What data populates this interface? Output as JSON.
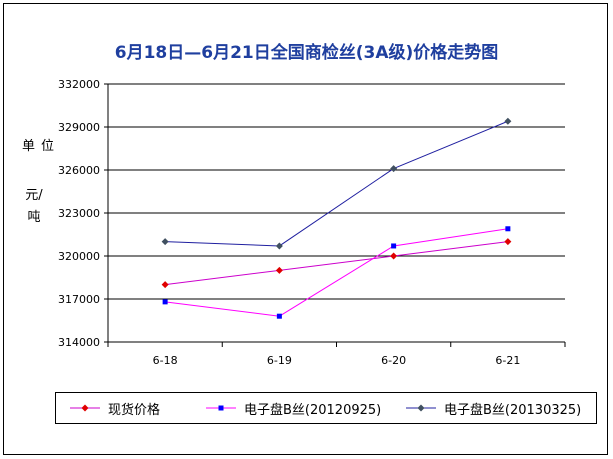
{
  "title": "6月18日—6月21日全国商检丝(3A级)价格走势图",
  "ylabel_lines": [
    "单位",
    "元/吨"
  ],
  "chart_data": {
    "type": "line",
    "categories": [
      "6-18",
      "6-19",
      "6-20",
      "6-21"
    ],
    "ylim": [
      314000,
      332000
    ],
    "yticks": [
      314000,
      317000,
      320000,
      323000,
      326000,
      329000,
      332000
    ],
    "ytick_labels": [
      "314000",
      "317000",
      "320000",
      "323000",
      "326000",
      "329000",
      "332000"
    ],
    "grid": true,
    "legend_position": "bottom",
    "series": [
      {
        "name": "现货价格",
        "color": "#cc00cc",
        "marker": "diamond",
        "marker_color": "#e00000",
        "values": [
          318000,
          319000,
          320000,
          321000
        ]
      },
      {
        "name": "电子盘B丝(20120925)",
        "color": "#ff00ff",
        "marker": "square",
        "marker_color": "#0000ff",
        "values": [
          316800,
          315800,
          320700,
          321900
        ]
      },
      {
        "name": "电子盘B丝(20130325)",
        "color": "#2020a0",
        "marker": "diamond",
        "marker_color": "#405060",
        "values": [
          321000,
          320700,
          326100,
          329400
        ]
      }
    ]
  }
}
